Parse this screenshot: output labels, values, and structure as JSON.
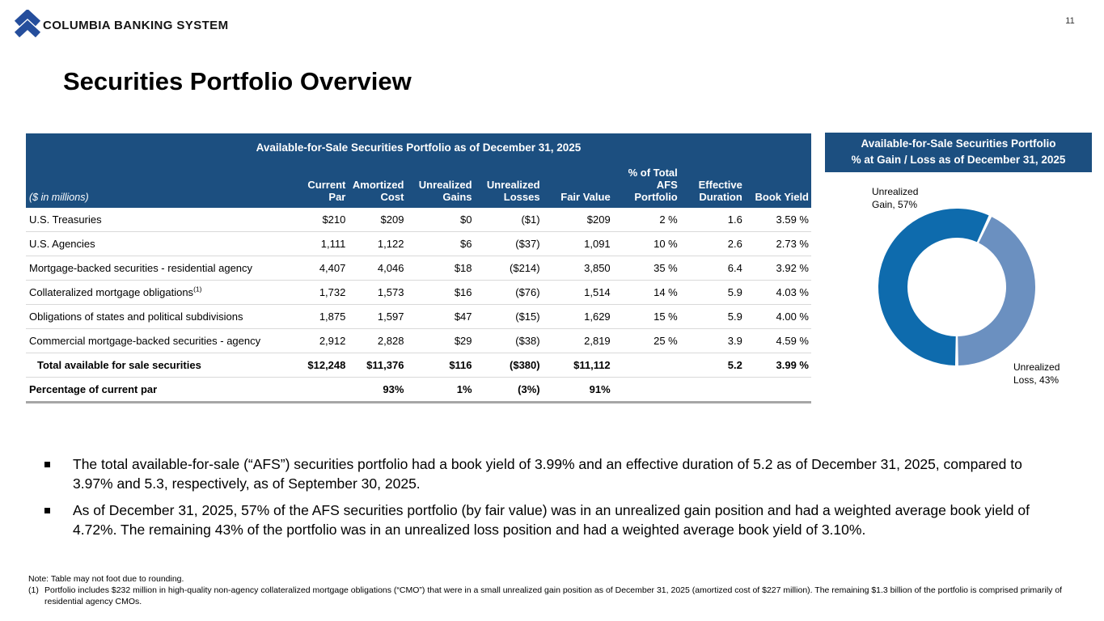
{
  "page": {
    "brand": "COLUMBIA BANKING SYSTEM",
    "page_number": "11",
    "title": "Securities Portfolio Overview"
  },
  "colors": {
    "header_navy": "#1C4F80",
    "donut_gain_blue": "#0E6BAD",
    "donut_loss_blue": "#6B90C0",
    "row_divider_gray": "#D9D9D9",
    "table_bottom_gray": "#A6A6A6",
    "logo_blue": "#254E9C"
  },
  "table": {
    "title": "Available-for-Sale Securities Portfolio as of December 31, 2025",
    "units_label": "($ in millions)",
    "columns": [
      [
        "Current",
        "Par"
      ],
      [
        "Amortized",
        "Cost"
      ],
      [
        "Unrealized",
        "Gains"
      ],
      [
        "Unrealized",
        "Losses"
      ],
      [
        "Fair Value"
      ],
      [
        "% of Total",
        "AFS",
        "Portfolio"
      ],
      [
        "Effective",
        "Duration"
      ],
      [
        "Book Yield"
      ]
    ],
    "rows": [
      {
        "label": "U.S. Treasuries",
        "sup": "",
        "bold": false,
        "indent": false,
        "values": [
          "$210",
          "$209",
          "$0",
          "($1)",
          "$209",
          "2 %",
          "1.6",
          "3.59 %"
        ]
      },
      {
        "label": "U.S. Agencies",
        "sup": "",
        "bold": false,
        "indent": false,
        "values": [
          "1,111",
          "1,122",
          "$6",
          "($37)",
          "1,091",
          "10 %",
          "2.6",
          "2.73 %"
        ]
      },
      {
        "label": "Mortgage-backed securities - residential agency",
        "sup": "",
        "bold": false,
        "indent": false,
        "values": [
          "4,407",
          "4,046",
          "$18",
          "($214)",
          "3,850",
          "35 %",
          "6.4",
          "3.92 %"
        ]
      },
      {
        "label": "Collateralized mortgage obligations",
        "sup": "(1)",
        "bold": false,
        "indent": false,
        "values": [
          "1,732",
          "1,573",
          "$16",
          "($76)",
          "1,514",
          "14 %",
          "5.9",
          "4.03 %"
        ]
      },
      {
        "label": "Obligations of states and political subdivisions",
        "sup": "",
        "bold": false,
        "indent": false,
        "values": [
          "1,875",
          "1,597",
          "$47",
          "($15)",
          "1,629",
          "15 %",
          "5.9",
          "4.00 %"
        ]
      },
      {
        "label": "Commercial mortgage-backed securities - agency",
        "sup": "",
        "bold": false,
        "indent": false,
        "values": [
          "2,912",
          "2,828",
          "$29",
          "($38)",
          "2,819",
          "25 %",
          "3.9",
          "4.59 %"
        ]
      },
      {
        "label": "Total available for sale securities",
        "sup": "",
        "bold": true,
        "indent": true,
        "values": [
          "$12,248",
          "$11,376",
          "$116",
          "($380)",
          "$11,112",
          "",
          "5.2",
          "3.99 %"
        ]
      },
      {
        "label": "Percentage of current par",
        "sup": "",
        "bold": true,
        "indent": false,
        "values": [
          "",
          "93%",
          "1%",
          "(3%)",
          "91%",
          "",
          "",
          ""
        ]
      }
    ]
  },
  "chart_panel": {
    "title_line1": "Available-for-Sale Securities Portfolio",
    "title_line2": "% at Gain / Loss as of December 31, 2025"
  },
  "chart_data": {
    "type": "pie",
    "subtype": "donut",
    "title": "Available-for-Sale Securities Portfolio % at Gain / Loss as of December 31, 2025",
    "start_angle_deg": 180,
    "slice_gap_deg": 1.2,
    "legend_position": "data-labels",
    "slices": [
      {
        "name": "Unrealized Gain",
        "value": 57,
        "color": "#0E6BAD",
        "label_lines": [
          "Unrealized",
          "Gain, 57%"
        ]
      },
      {
        "name": "Unrealized Loss",
        "value": 43,
        "color": "#6B90C0",
        "label_lines": [
          "Unrealized",
          "Loss, 43%"
        ]
      }
    ]
  },
  "bullets": [
    "The total available-for-sale (“AFS”) securities portfolio had a book yield of 3.99% and an effective duration of 5.2 as of December 31, 2025, compared to 3.97% and 5.3, respectively, as of September 30, 2025.",
    "As of December 31, 2025, 57% of the AFS securities portfolio (by fair value) was in an unrealized gain position and had a weighted average book yield of 4.72%. The remaining 43% of the portfolio was in an unrealized loss position and had a weighted average book yield of 3.10%."
  ],
  "footnotes": {
    "note": "Note: Table may not foot due to rounding.",
    "items": [
      {
        "marker": "(1)",
        "text": "Portfolio includes $232 million in high-quality non-agency collateralized mortgage obligations (“CMO”) that were in a small unrealized gain position as of December 31, 2025 (amortized cost of $227 million). The remaining $1.3 billion of the portfolio is comprised primarily of residential agency CMOs."
      }
    ]
  }
}
